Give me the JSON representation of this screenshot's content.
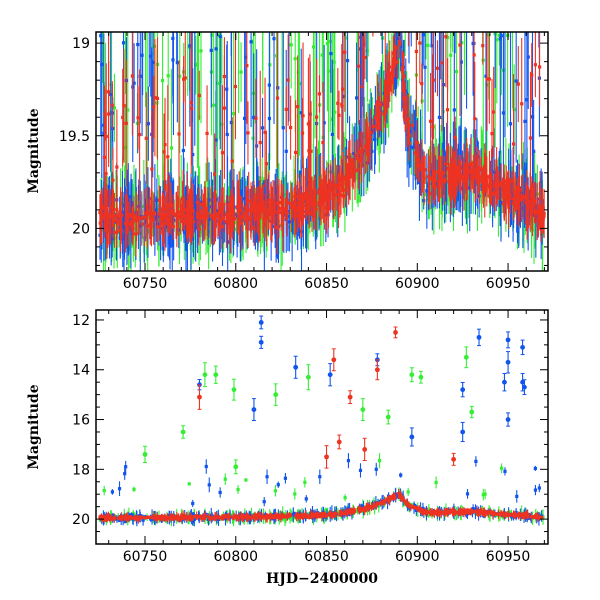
{
  "chart_data": [
    {
      "type": "scatter",
      "panel": "top",
      "ylabel": "Magnitude",
      "xlabel": "",
      "xlim": [
        60723,
        60972
      ],
      "ylim": [
        20.23,
        18.94
      ],
      "y_inverted": true,
      "x_ticks": [
        60750,
        60800,
        60850,
        60900,
        60950
      ],
      "y_ticks": [
        19,
        19.5,
        20
      ],
      "grid": false,
      "series": [
        {
          "name": "green",
          "color": "#33ee33"
        },
        {
          "name": "blue",
          "color": "#1155ee"
        },
        {
          "name": "red",
          "color": "#ee3322"
        }
      ],
      "baseline_trend": [
        {
          "x": 60725,
          "y": 19.95
        },
        {
          "x": 60780,
          "y": 19.93
        },
        {
          "x": 60830,
          "y": 19.9
        },
        {
          "x": 60855,
          "y": 19.8
        },
        {
          "x": 60870,
          "y": 19.6
        },
        {
          "x": 60882,
          "y": 19.3
        },
        {
          "x": 60890,
          "y": 19.0
        },
        {
          "x": 60895,
          "y": 19.45
        },
        {
          "x": 60905,
          "y": 19.75
        },
        {
          "x": 60930,
          "y": 19.7
        },
        {
          "x": 60970,
          "y": 19.92
        }
      ]
    },
    {
      "type": "scatter",
      "panel": "bottom",
      "ylabel": "Magnitude",
      "xlabel": "HJD−2400000",
      "xlim": [
        60723,
        60972
      ],
      "ylim": [
        21,
        11.6
      ],
      "y_inverted": true,
      "x_ticks": [
        60750,
        60800,
        60850,
        60900,
        60950
      ],
      "y_ticks": [
        12,
        14,
        16,
        18,
        20
      ],
      "grid": false,
      "series": [
        {
          "name": "green",
          "color": "#33ee33"
        },
        {
          "name": "blue",
          "color": "#1155ee"
        },
        {
          "name": "red",
          "color": "#ee3322"
        }
      ],
      "outliers": {
        "blue": [
          {
            "x": 60814,
            "y": 12.1
          },
          {
            "x": 60814,
            "y": 12.9
          },
          {
            "x": 60833,
            "y": 13.9
          },
          {
            "x": 60852,
            "y": 14.2
          },
          {
            "x": 60878,
            "y": 13.6
          },
          {
            "x": 60934,
            "y": 12.7
          },
          {
            "x": 60950,
            "y": 12.8
          },
          {
            "x": 60958,
            "y": 13.1
          },
          {
            "x": 60950,
            "y": 13.7
          },
          {
            "x": 60958,
            "y": 14.5
          },
          {
            "x": 60959,
            "y": 14.7
          },
          {
            "x": 60948,
            "y": 14.5
          },
          {
            "x": 60925,
            "y": 14.8
          },
          {
            "x": 60810,
            "y": 15.6
          },
          {
            "x": 60780,
            "y": 14.6
          },
          {
            "x": 60897,
            "y": 16.7
          },
          {
            "x": 60925,
            "y": 16.5
          },
          {
            "x": 60950,
            "y": 16.0
          }
        ],
        "green": [
          {
            "x": 60783,
            "y": 14.2
          },
          {
            "x": 60789,
            "y": 14.2
          },
          {
            "x": 60799,
            "y": 14.8
          },
          {
            "x": 60822,
            "y": 15.0
          },
          {
            "x": 60840,
            "y": 14.3
          },
          {
            "x": 60870,
            "y": 15.6
          },
          {
            "x": 60897,
            "y": 14.2
          },
          {
            "x": 60902,
            "y": 14.3
          },
          {
            "x": 60927,
            "y": 13.5
          },
          {
            "x": 60771,
            "y": 16.5
          },
          {
            "x": 60884,
            "y": 15.9
          },
          {
            "x": 60930,
            "y": 15.7
          },
          {
            "x": 60750,
            "y": 17.4
          },
          {
            "x": 60800,
            "y": 17.9
          }
        ],
        "red": [
          {
            "x": 60780,
            "y": 15.1
          },
          {
            "x": 60854,
            "y": 13.6
          },
          {
            "x": 60888,
            "y": 12.5
          },
          {
            "x": 60878,
            "y": 14.0
          },
          {
            "x": 60863,
            "y": 15.1
          },
          {
            "x": 60857,
            "y": 16.9
          },
          {
            "x": 60871,
            "y": 17.2
          },
          {
            "x": 60850,
            "y": 17.5
          },
          {
            "x": 60920,
            "y": 17.6
          }
        ]
      }
    }
  ]
}
